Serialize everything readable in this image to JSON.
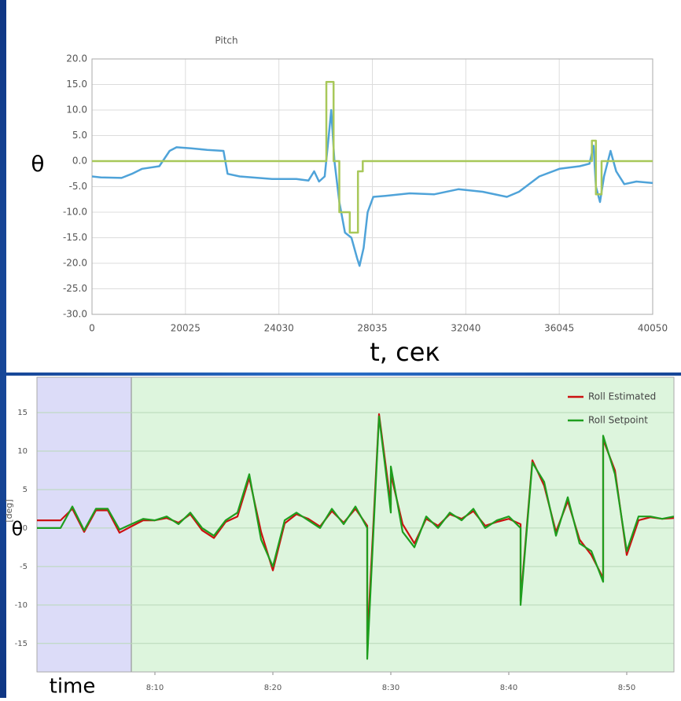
{
  "chart_data": [
    {
      "type": "line",
      "title": "Pitch",
      "ylabel": "θ",
      "xlabel": "t, сек",
      "xlim": [
        0,
        40050
      ],
      "xticks": [
        0,
        20025,
        24030,
        28035,
        32040,
        36045,
        40050
      ],
      "ylim": [
        -30,
        20
      ],
      "yticks": [
        {
          "value": -30,
          "label": "-30.0"
        },
        {
          "value": -25,
          "label": "-25.0"
        },
        {
          "value": -20,
          "label": "-20.0"
        },
        {
          "value": -15,
          "label": "-15.0"
        },
        {
          "value": -10,
          "label": "-10.0"
        },
        {
          "value": -5,
          "label": "-5.0"
        },
        {
          "value": 0,
          "label": "0.0"
        },
        {
          "value": 5,
          "label": "5.0"
        },
        {
          "value": 10,
          "label": "10.0"
        },
        {
          "value": 15,
          "label": "15.0"
        },
        {
          "value": 20,
          "label": "20.0"
        }
      ],
      "grid": true,
      "series": [
        {
          "color": "#4fa3d9",
          "x": [
            0,
            1914,
            6331,
            8540,
            10749,
            14430,
            16638,
            18110,
            20268,
            20962,
            21656,
            21830,
            22350,
            23738,
            24779,
            25300,
            25542,
            25750,
            25993,
            26167,
            26271,
            26410,
            26618,
            26861,
            27139,
            27382,
            27486,
            27660,
            27833,
            28076,
            28596,
            29637,
            30678,
            31719,
            32760,
            33801,
            34322,
            35189,
            36057,
            36924,
            37340,
            37514,
            37618,
            37791,
            37965,
            38243,
            38486,
            38833,
            39353,
            40050
          ],
          "values": [
            -3,
            -3.2,
            -3.3,
            -2.5,
            -1.5,
            -1,
            2,
            2.7,
            2.5,
            2.2,
            2,
            -2.5,
            -3,
            -3.5,
            -3.5,
            -3.8,
            -2,
            -4,
            -3,
            5,
            10,
            0,
            -8,
            -14,
            -15,
            -19,
            -20.5,
            -17,
            -10,
            -7,
            -6.8,
            -6.3,
            -6.5,
            -5.5,
            -6,
            -7,
            -6,
            -3,
            -1.5,
            -1,
            -0.5,
            3,
            -5,
            -8,
            -3,
            2,
            -2,
            -4.5,
            -4,
            -4.3
          ]
        },
        {
          "color": "#a8c85a",
          "x": [
            0,
            26063,
            26063,
            26375,
            26375,
            26618,
            26618,
            27069,
            27069,
            27417,
            27417,
            27625,
            27625,
            37444,
            37444,
            37618,
            37618,
            37860,
            37860,
            40050
          ],
          "values": [
            0,
            0,
            15.5,
            15.5,
            0,
            0,
            -10,
            -10,
            -14,
            -14,
            -2,
            -2,
            0,
            0,
            4,
            4,
            -6.5,
            -6.5,
            0,
            0
          ]
        }
      ]
    },
    {
      "type": "line",
      "ylabel": "[deg]",
      "annotations": [
        "θ",
        "time"
      ],
      "xlim": [
        "8:00",
        "8:54"
      ],
      "xticks": [
        "8:10",
        "8:20",
        "8:30",
        "8:40",
        "8:50"
      ],
      "ylim": [
        -18.7,
        19.6
      ],
      "yticks": [
        -15,
        -10,
        -5,
        0,
        5,
        10,
        15
      ],
      "grid": true,
      "legend": "top-right",
      "regions": [
        {
          "from": "8:00",
          "to": "8:08",
          "color": "#dcdcf8"
        },
        {
          "from": "8:08",
          "to": "8:54",
          "color": "#ddf5dd"
        }
      ],
      "x": [
        "8:00",
        "8:01",
        "8:02",
        "8:03",
        "8:04",
        "8:05",
        "8:06",
        "8:07",
        "8:08",
        "8:09",
        "8:10",
        "8:11",
        "8:12",
        "8:13",
        "8:14",
        "8:15",
        "8:16",
        "8:17",
        "8:18",
        "8:19",
        "8:20",
        "8:21",
        "8:22",
        "8:23",
        "8:24",
        "8:25",
        "8:26",
        "8:27",
        "8:28",
        "8:28",
        "8:29",
        "8:30",
        "8:30",
        "8:31",
        "8:32",
        "8:33",
        "8:34",
        "8:35",
        "8:36",
        "8:37",
        "8:38",
        "8:39",
        "8:40",
        "8:41",
        "8:41",
        "8:42",
        "8:43",
        "8:44",
        "8:45",
        "8:46",
        "8:47",
        "8:48",
        "8:48",
        "8:49",
        "8:50",
        "8:51",
        "8:52",
        "8:53",
        "8:54"
      ],
      "series": [
        {
          "name": "Roll Estimated",
          "color": "#cc1111",
          "values": [
            1,
            1,
            1,
            2.5,
            -0.5,
            2.3,
            2.3,
            -0.6,
            0.2,
            1,
            1,
            1.3,
            0.7,
            1.8,
            -0.3,
            -1.3,
            0.8,
            1.5,
            6.5,
            -0.5,
            -5.5,
            0.6,
            1.8,
            1.2,
            0.2,
            2.2,
            0.7,
            2.5,
            0.3,
            -15,
            14.8,
            3,
            7,
            0.5,
            -2,
            1.2,
            0.3,
            1.8,
            1.2,
            2.2,
            0.3,
            0.8,
            1.2,
            0.5,
            -9.5,
            8.8,
            5.5,
            -0.5,
            3.5,
            -1.5,
            -3.5,
            -6.5,
            11.5,
            7.5,
            -3.5,
            1,
            1.4,
            1.2,
            1.3
          ]
        },
        {
          "name": "Roll Setpoint",
          "color": "#1e9e1e",
          "values": [
            0,
            0,
            0,
            2.8,
            -0.3,
            2.5,
            2.5,
            -0.2,
            0.5,
            1.2,
            1,
            1.5,
            0.5,
            2,
            0,
            -1,
            1,
            2,
            7,
            -1.5,
            -5,
            1,
            2,
            1,
            0,
            2.5,
            0.5,
            2.8,
            0,
            -17,
            14.5,
            2,
            8,
            -0.5,
            -2.5,
            1.5,
            0,
            2,
            1,
            2.5,
            0,
            1,
            1.5,
            0,
            -10,
            8.5,
            6,
            -1,
            4,
            -2,
            -3,
            -7,
            12,
            7,
            -3,
            1.5,
            1.5,
            1.2,
            1.5
          ]
        }
      ]
    }
  ]
}
